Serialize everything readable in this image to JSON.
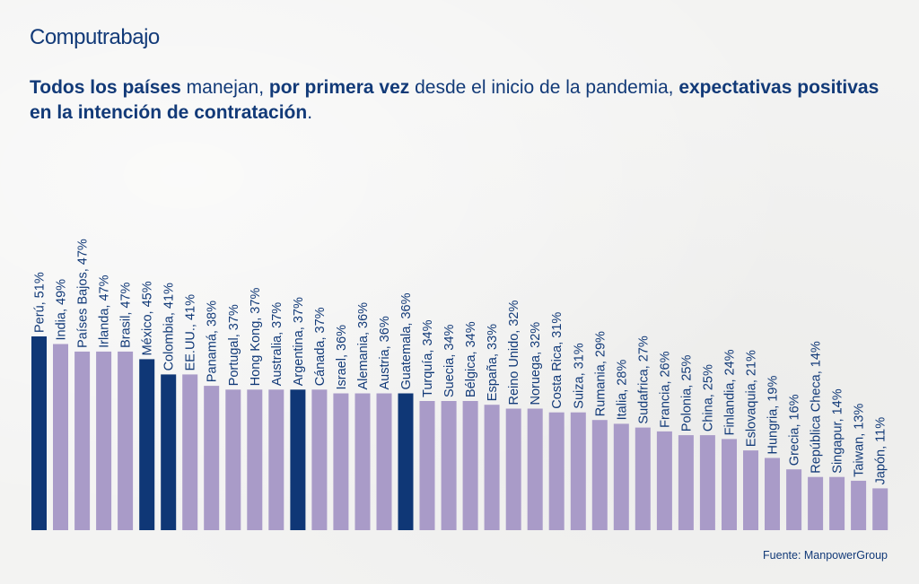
{
  "brand": "Computrabajo",
  "headline": [
    {
      "text": "Todos los países",
      "bold": true
    },
    {
      "text": " manejan, ",
      "bold": false
    },
    {
      "text": "por primera vez",
      "bold": true
    },
    {
      "text": " desde el inicio de la pandemia, ",
      "bold": false
    },
    {
      "text": "expectativas positivas en la intención de contratación",
      "bold": true
    },
    {
      "text": ".",
      "bold": false
    }
  ],
  "source": "Fuente: ManpowerGroup",
  "colors": {
    "highlight": "#0f3776",
    "default": "#a99bc8",
    "text": "#123a78"
  },
  "chart_data": {
    "type": "bar",
    "title": "Todos los países manejan, por primera vez desde el inicio de la pandemia, expectativas positivas en la intención de contratación.",
    "xlabel": "",
    "ylabel": "",
    "ylim": [
      0,
      51
    ],
    "grid": false,
    "unit": "%",
    "categories": [
      "Perú",
      "India",
      "Países Bajos",
      "Irlanda",
      "Brasil",
      "México",
      "Colombia",
      "EE.UU.",
      "Panamá",
      "Portugal",
      "Hong Kong",
      "Australia",
      "Argentina",
      "Cánada",
      "Israel",
      "Alemania",
      "Austria",
      "Guatemala",
      "Turquía",
      "Suecia",
      "Bélgica",
      "España",
      "Reino Unido",
      "Noruega",
      "Costa Rica",
      "Suiza",
      "Rumania",
      "Italia",
      "Sudafrica",
      "Francia",
      "Polonia",
      "China",
      "Finlandia",
      "Eslovaquia",
      "Hungria",
      "Grecia",
      "República Checa",
      "Singapur",
      "Taiwan",
      "Japón"
    ],
    "values": [
      51,
      49,
      47,
      47,
      47,
      45,
      41,
      41,
      38,
      37,
      37,
      37,
      37,
      37,
      36,
      36,
      36,
      36,
      34,
      34,
      34,
      33,
      32,
      32,
      31,
      31,
      29,
      28,
      27,
      26,
      25,
      25,
      24,
      21,
      19,
      16,
      14,
      14,
      13,
      11
    ],
    "highlighted": [
      "Perú",
      "México",
      "Colombia",
      "Argentina",
      "Guatemala"
    ],
    "labels": [
      "Perú, 51%",
      "India, 49%",
      "Países Bajos, 47%",
      "Irlanda, 47%",
      "Brasil, 47%",
      "México, 45%",
      "Colombia, 41%",
      "EE.UU., 41%",
      "Panamá, 38%",
      "Portugal, 37%",
      "Hong Kong, 37%",
      "Australia, 37%",
      "Argentina, 37%",
      "Cánada, 37%",
      "Israel, 36%",
      "Alemania, 36%",
      "Austria, 36%",
      "Guatemala, 36%",
      "Turquía, 34%",
      "Suecia, 34%",
      "Bélgica, 34%",
      "España, 33%",
      "Reino Unido, 32%",
      "Noruega, 32%",
      "Costa Rica, 31%",
      "Suiza, 31%",
      "Rumania, 29%",
      "Italia, 28%",
      "Sudafrica, 27%",
      "Francia, 26%",
      "Polonia, 25%",
      "China, 25%",
      "Finlandia, 24%",
      "Eslovaquia, 21%",
      "Hungria, 19%",
      "Grecia, 16%",
      "República Checa, 14%",
      "Singapur, 14%",
      "Taiwan, 13%",
      "Japón, 11%"
    ]
  }
}
